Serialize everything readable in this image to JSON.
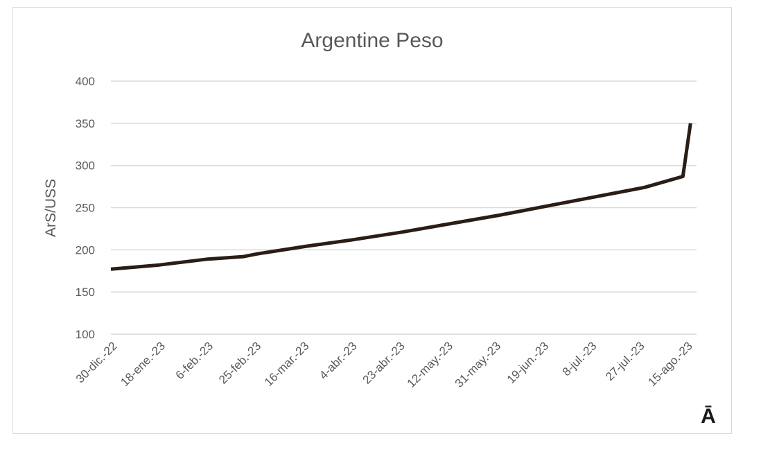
{
  "chart_data": {
    "type": "line",
    "title": "Argentine Peso",
    "xlabel": "",
    "ylabel": "ArS/USS",
    "ylim": [
      100,
      400
    ],
    "yticks": [
      100,
      150,
      200,
      250,
      300,
      350,
      400
    ],
    "xlim": [
      "2022-12-30",
      "2023-08-15"
    ],
    "xtick_labels": [
      "30-dic.-22",
      "18-ene.-23",
      "6-feb.-23",
      "25-feb.-23",
      "16-mar.-23",
      "4-abr.-23",
      "23-abr.-23",
      "12-may.-23",
      "31-may.-23",
      "19-jun.-23",
      "8-jul.-23",
      "27-jul.-23",
      "15-ago.-23"
    ],
    "grid": true,
    "legend": "none",
    "series": [
      {
        "color": "#2b1d16",
        "x": [
          "2022-12-30",
          "2023-01-18",
          "2023-02-06",
          "2023-02-20",
          "2023-02-25",
          "2023-03-16",
          "2023-04-04",
          "2023-04-23",
          "2023-05-12",
          "2023-05-31",
          "2023-06-19",
          "2023-07-08",
          "2023-07-27",
          "2023-08-11",
          "2023-08-14"
        ],
        "y": [
          177,
          182,
          189,
          192,
          195,
          204,
          212,
          221,
          231,
          241,
          252,
          263,
          274,
          287,
          350
        ]
      }
    ],
    "corner_mark": "Ā"
  }
}
